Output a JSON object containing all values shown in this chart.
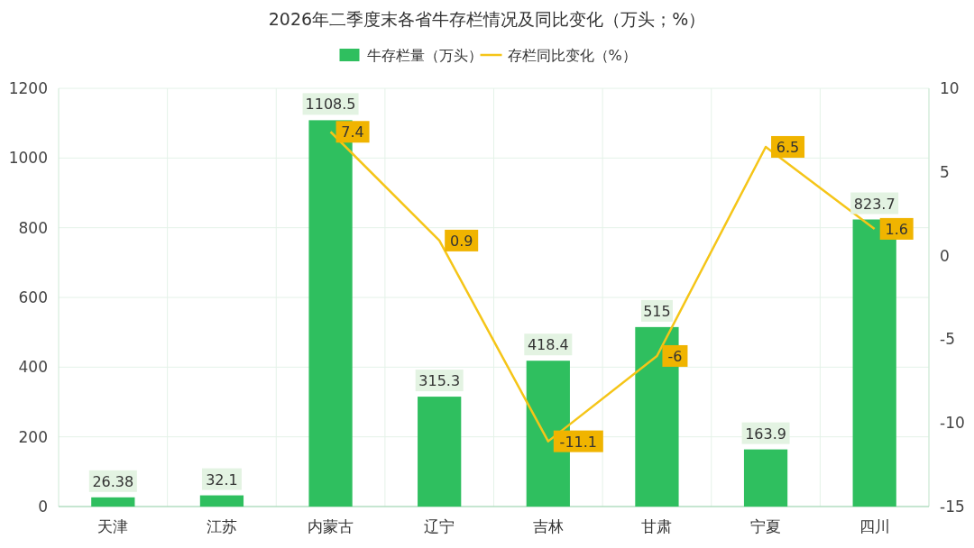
{
  "chart_data": {
    "type": "bar",
    "title": "2026年二季度末各省牛存栏情况及同比变化（万头；%）",
    "categories": [
      "天津",
      "江苏",
      "内蒙古",
      "辽宁",
      "吉林",
      "甘肃",
      "宁夏",
      "四川"
    ],
    "series": [
      {
        "name": "牛存栏量（万头）",
        "color": "#2fbf5f",
        "values": [
          26.38,
          32.1,
          1108.5,
          315.3,
          418.4,
          515,
          163.9,
          823.7
        ]
      },
      {
        "name": "存栏同比变化（%）",
        "type": "line",
        "axis": "y2",
        "color": "#f5c518",
        "values": [
          null,
          null,
          7.4,
          0.9,
          -11.1,
          -6,
          6.5,
          1.6
        ]
      }
    ],
    "ylim": [
      0,
      1200
    ],
    "yticks": [
      0,
      200,
      400,
      600,
      800,
      1000,
      1200
    ],
    "y2lim": [
      -15,
      10
    ],
    "y2ticks": [
      -15,
      -10,
      -5,
      0,
      5,
      10
    ],
    "grid": true,
    "legend": "top",
    "data_labels": true
  }
}
